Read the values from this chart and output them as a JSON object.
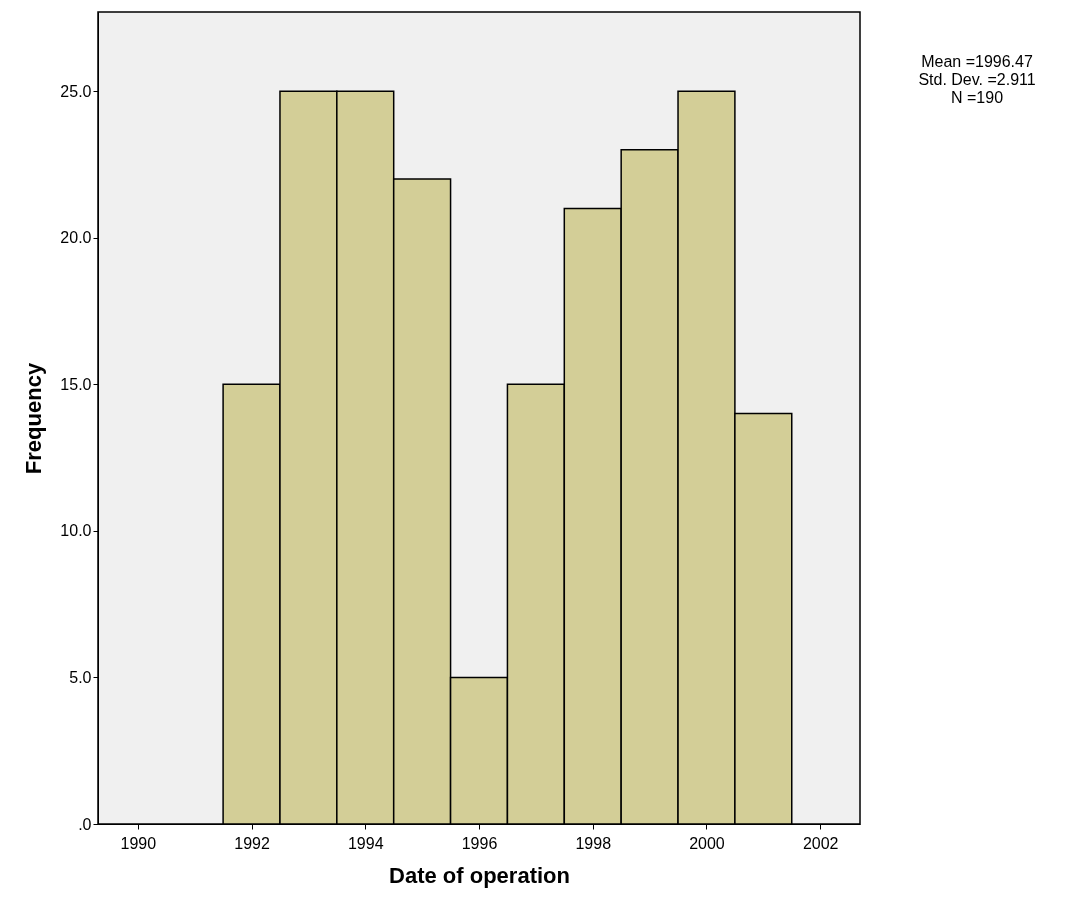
{
  "chart_data": {
    "type": "histogram",
    "xlabel": "Date of operation",
    "ylabel": "Frequency",
    "bins": [
      1991.5,
      1992.5,
      1993.5,
      1994.5,
      1995.5,
      1996.5,
      1997.5,
      1998.5,
      1999.5,
      2000.5,
      2001.5
    ],
    "values": [
      15,
      25,
      25,
      22,
      5,
      15,
      21,
      23,
      25,
      14
    ],
    "color": "#d3ce97",
    "xlim": [
      1989.3,
      2002.7
    ],
    "xticks": [
      1990,
      1992,
      1994,
      1996,
      1998,
      2000,
      2002
    ],
    "ylim": [
      0,
      27.7
    ],
    "yticks": [
      {
        "value": 0,
        "label": ".0"
      },
      {
        "value": 5,
        "label": "5.0"
      },
      {
        "value": 10,
        "label": "10.0"
      },
      {
        "value": 15,
        "label": "15.0"
      },
      {
        "value": 20,
        "label": "20.0"
      },
      {
        "value": 25,
        "label": "25.0"
      }
    ],
    "annotations": [
      "Mean =1996.47",
      "Std. Dev. =2.911",
      "N =190"
    ],
    "grid": false
  }
}
